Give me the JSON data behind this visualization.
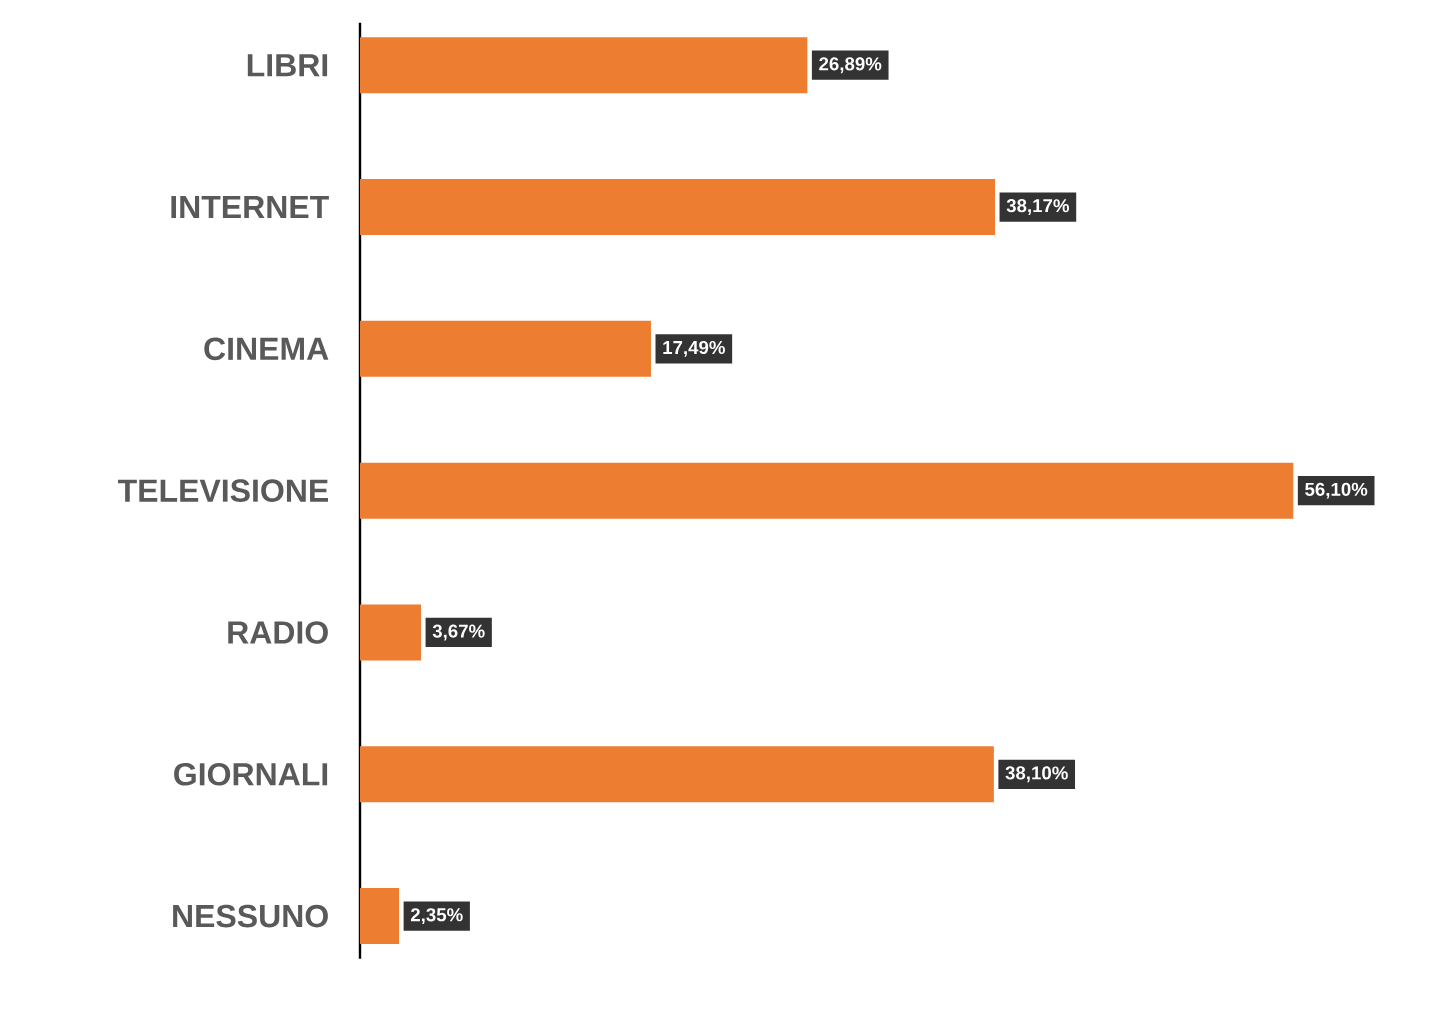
{
  "chart_data": {
    "type": "bar",
    "orientation": "horizontal",
    "categories": [
      "LIBRI",
      "INTERNET",
      "CINEMA",
      "TELEVISIONE",
      "RADIO",
      "GIORNALI",
      "NESSUNO"
    ],
    "values": [
      26.89,
      38.17,
      17.49,
      56.1,
      3.67,
      38.1,
      2.35
    ],
    "value_labels": [
      "26,89%",
      "38,17%",
      "17,49%",
      "56,10%",
      "3,67%",
      "38,10%",
      "2,35%"
    ],
    "color": "#ed7d31",
    "tick_labels": "y"
  }
}
